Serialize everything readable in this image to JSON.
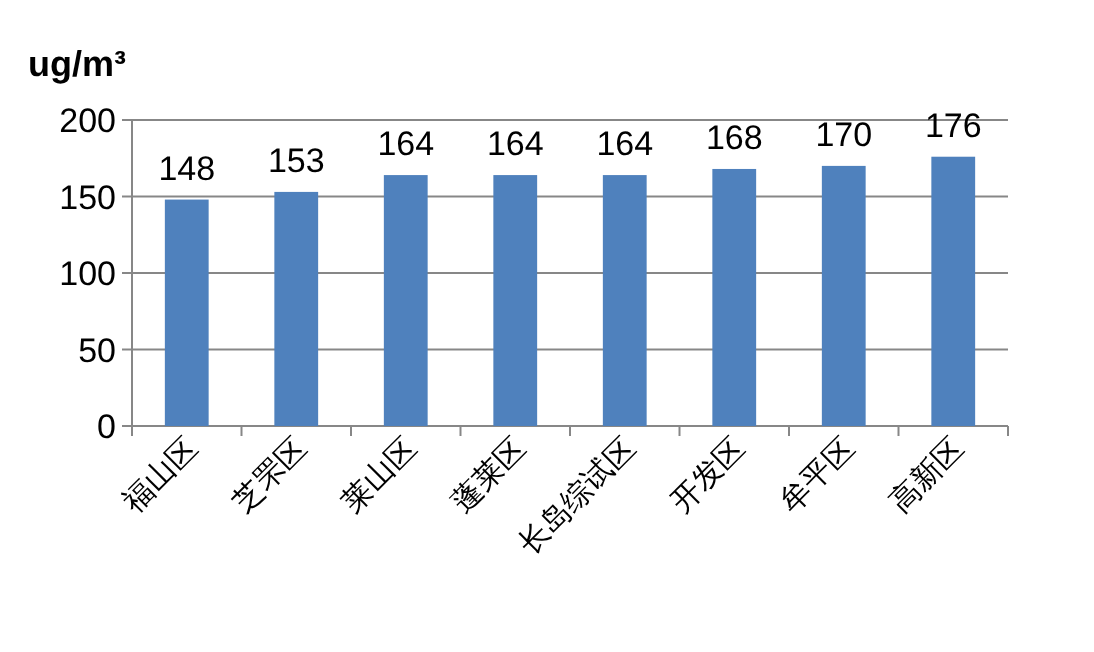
{
  "chart_data": {
    "type": "bar",
    "ylabel": "ug/m³",
    "categories": [
      "福山区",
      "芝罘区",
      "莱山区",
      "蓬莱区",
      "长岛综试区",
      "开发区",
      "牟平区",
      "高新区"
    ],
    "series": [
      {
        "color": "#4f81bd",
        "values": [
          148,
          153,
          164,
          164,
          164,
          168,
          170,
          176
        ]
      }
    ],
    "ylim": [
      0,
      200
    ],
    "yticks": [
      0,
      50,
      100,
      150,
      200
    ],
    "grid": "y",
    "data_labels": true
  }
}
